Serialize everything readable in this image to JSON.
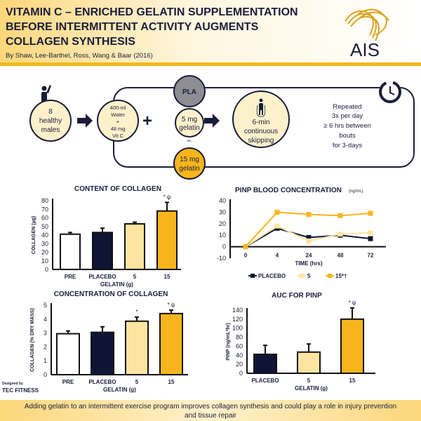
{
  "header": {
    "title_lines": [
      "VITAMIN C – ENRICHED GELATIN SUPPLEMENTATION",
      "BEFORE INTERMITTENT ACTIVITY AUGMENTS",
      "COLLAGEN SYNTHESIS"
    ],
    "byline": "By Shaw, Lee-Barthel, Ross, Wang & Baar (2016)",
    "logo": "AIS"
  },
  "flow": {
    "subjects": [
      "8",
      "healthy",
      "males"
    ],
    "drink": [
      "400-ml",
      "Water",
      "+",
      "48 mg",
      "Vit C"
    ],
    "plus": "+",
    "pla": "PLA",
    "vs": "vs.",
    "g5": [
      "5 mg",
      "gelatin"
    ],
    "g15": [
      "15 mg",
      "gelatin"
    ],
    "exercise": [
      "6-min",
      "continuous",
      "skipping"
    ],
    "repeat": [
      "Repeated",
      "3x per day",
      "≥ 6 hrs between",
      "bouts",
      "for 3-days"
    ]
  },
  "colors": {
    "pre": "#ffffff",
    "placebo": "#0f1535",
    "g5": "#fde4a0",
    "g15": "#f7b51c",
    "pla": "#8d8d93",
    "accent": "#f5b81c"
  },
  "chart_data": [
    {
      "id": "content",
      "type": "bar",
      "title": "CONTENT OF COLLAGEN",
      "ylabel": "COLLAGEN (µg)",
      "xlabel": "GELATIN (g)",
      "ylim": [
        0,
        80
      ],
      "yticks": [
        0,
        10,
        20,
        30,
        40,
        50,
        60,
        70,
        80
      ],
      "categories": [
        "PRE",
        "PLACEBO",
        "5",
        "15"
      ],
      "values": [
        41,
        43,
        53,
        68
      ],
      "errors": [
        2,
        5,
        2,
        10
      ],
      "annotations": [
        "",
        "",
        "",
        "* ψ"
      ]
    },
    {
      "id": "pinp",
      "type": "line",
      "title": "PINP BLOOD CONCENTRATION",
      "title_unit": "(ng/mL)",
      "xlabel": "TIME (hrs)",
      "ylim": [
        -10,
        40
      ],
      "yticks": [
        -10,
        0,
        10,
        20,
        30,
        40
      ],
      "x": [
        "0",
        "4",
        "24",
        "48",
        "72"
      ],
      "series": [
        {
          "name": "PLACEBO",
          "values": [
            0,
            16,
            8,
            10,
            7
          ]
        },
        {
          "name": "5",
          "values": [
            0,
            18,
            5,
            11,
            12
          ]
        },
        {
          "name": "15*†",
          "values": [
            0,
            30,
            28,
            27,
            29
          ]
        }
      ]
    },
    {
      "id": "concentration",
      "type": "bar",
      "title": "CONCENTRATION OF COLLAGEN",
      "ylabel": "COLLAGEN (% DRY MASS)",
      "xlabel": "GELATIN (g)",
      "ylim": [
        0,
        5
      ],
      "yticks": [
        0,
        1,
        2,
        3,
        4,
        5
      ],
      "categories": [
        "PRE",
        "PLACEBO",
        "5",
        "15"
      ],
      "values": [
        2.95,
        3.05,
        3.85,
        4.4
      ],
      "errors": [
        0.2,
        0.4,
        0.3,
        0.25
      ],
      "annotations": [
        "",
        "",
        "*",
        "* ψ"
      ]
    },
    {
      "id": "auc",
      "type": "bar",
      "title": "AUC FOR PINP",
      "ylabel": "PINP (ng/mL*hr)",
      "xlabel": "GELATIN (g)",
      "ylim": [
        0,
        140
      ],
      "yticks": [
        0,
        20,
        40,
        60,
        80,
        100,
        120,
        140
      ],
      "categories": [
        "PLACEBO",
        "5",
        "15"
      ],
      "values": [
        42,
        47,
        120
      ],
      "errors": [
        20,
        18,
        25
      ],
      "annotations": [
        "",
        "",
        "* ψ"
      ]
    }
  ],
  "credit": {
    "line1": "Designed by",
    "line2": "TEC FITNESS"
  },
  "footer": {
    "text": "Adding gelatin to an intermittent exercise program improves collagen synthesis and could play a role in injury prevention and tissue repair"
  }
}
